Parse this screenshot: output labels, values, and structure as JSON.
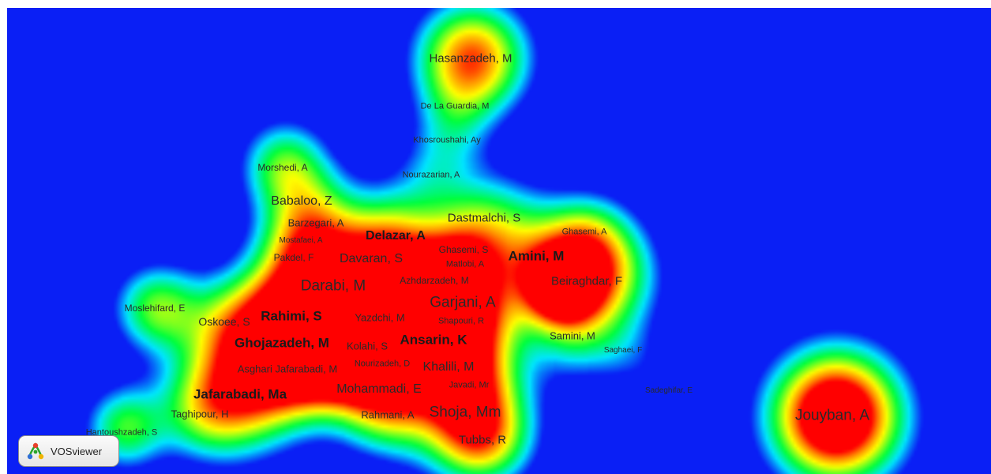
{
  "app": {
    "name": "VOSviewer"
  },
  "colors": {
    "background": "#0a1ff5",
    "density_low": "#00e5ff",
    "density_mid": "#00ff33",
    "density_high": "#ffff00",
    "density_peak": "#ff0000"
  },
  "density_map": {
    "type": "author-density",
    "nodes": [
      {
        "label": "Hasanzadeh, M",
        "weight": 2.2
      },
      {
        "label": "De La Guardia, M",
        "weight": 1.0
      },
      {
        "label": "Khosroushahi, Ay",
        "weight": 1.0
      },
      {
        "label": "Nourazarian, A",
        "weight": 1.0
      },
      {
        "label": "Morshedi, A",
        "weight": 1.2
      },
      {
        "label": "Babaloo, Z",
        "weight": 1.8
      },
      {
        "label": "Barzegari, A",
        "weight": 1.4
      },
      {
        "label": "Mostafaei, A",
        "weight": 0.8
      },
      {
        "label": "Delazar, A",
        "weight": 2.4
      },
      {
        "label": "Dastmalchi, S",
        "weight": 2.2
      },
      {
        "label": "Ghasemi, A",
        "weight": 1.0
      },
      {
        "label": "Pakdel, F",
        "weight": 1.2
      },
      {
        "label": "Davaran, S",
        "weight": 2.0
      },
      {
        "label": "Ghasemi, S",
        "weight": 1.2
      },
      {
        "label": "Matlobi, A",
        "weight": 1.0
      },
      {
        "label": "Amini, M",
        "weight": 2.6
      },
      {
        "label": "Azhdarzadeh, M",
        "weight": 1.2
      },
      {
        "label": "Beiraghdar, F",
        "weight": 3.0
      },
      {
        "label": "Darabi, M",
        "weight": 3.4
      },
      {
        "label": "Garjani, A",
        "weight": 3.2
      },
      {
        "label": "Moslehifard, E",
        "weight": 1.2
      },
      {
        "label": "Oskoee, S",
        "weight": 1.8
      },
      {
        "label": "Rahimi, S",
        "weight": 3.0
      },
      {
        "label": "Yazdchi, M",
        "weight": 1.4
      },
      {
        "label": "Shapouri, R",
        "weight": 1.0
      },
      {
        "label": "Ghojazadeh, M",
        "weight": 3.6
      },
      {
        "label": "Kolahi, S",
        "weight": 1.6
      },
      {
        "label": "Ansarin, K",
        "weight": 2.8
      },
      {
        "label": "Samini, M",
        "weight": 1.4
      },
      {
        "label": "Saghaei, F",
        "weight": 0.8
      },
      {
        "label": "Asghari Jafarabadi, M",
        "weight": 1.6
      },
      {
        "label": "Nourizadeh, D",
        "weight": 1.2
      },
      {
        "label": "Khalili, M",
        "weight": 2.0
      },
      {
        "label": "Javadi, Mr",
        "weight": 1.0
      },
      {
        "label": "Mohammadi, E",
        "weight": 2.0
      },
      {
        "label": "Jafarabadi, Ma",
        "weight": 3.0
      },
      {
        "label": "Sadeghifar, E",
        "weight": 0.8
      },
      {
        "label": "Taghipour, H",
        "weight": 1.4
      },
      {
        "label": "Rahmani, A",
        "weight": 1.4
      },
      {
        "label": "Shoja, Mm",
        "weight": 3.0
      },
      {
        "label": "Jouyban, A",
        "weight": 3.0
      },
      {
        "label": "Hantoushzadeh, S",
        "weight": 1.0
      },
      {
        "label": "Tubbs, R",
        "weight": 1.6
      }
    ]
  }
}
